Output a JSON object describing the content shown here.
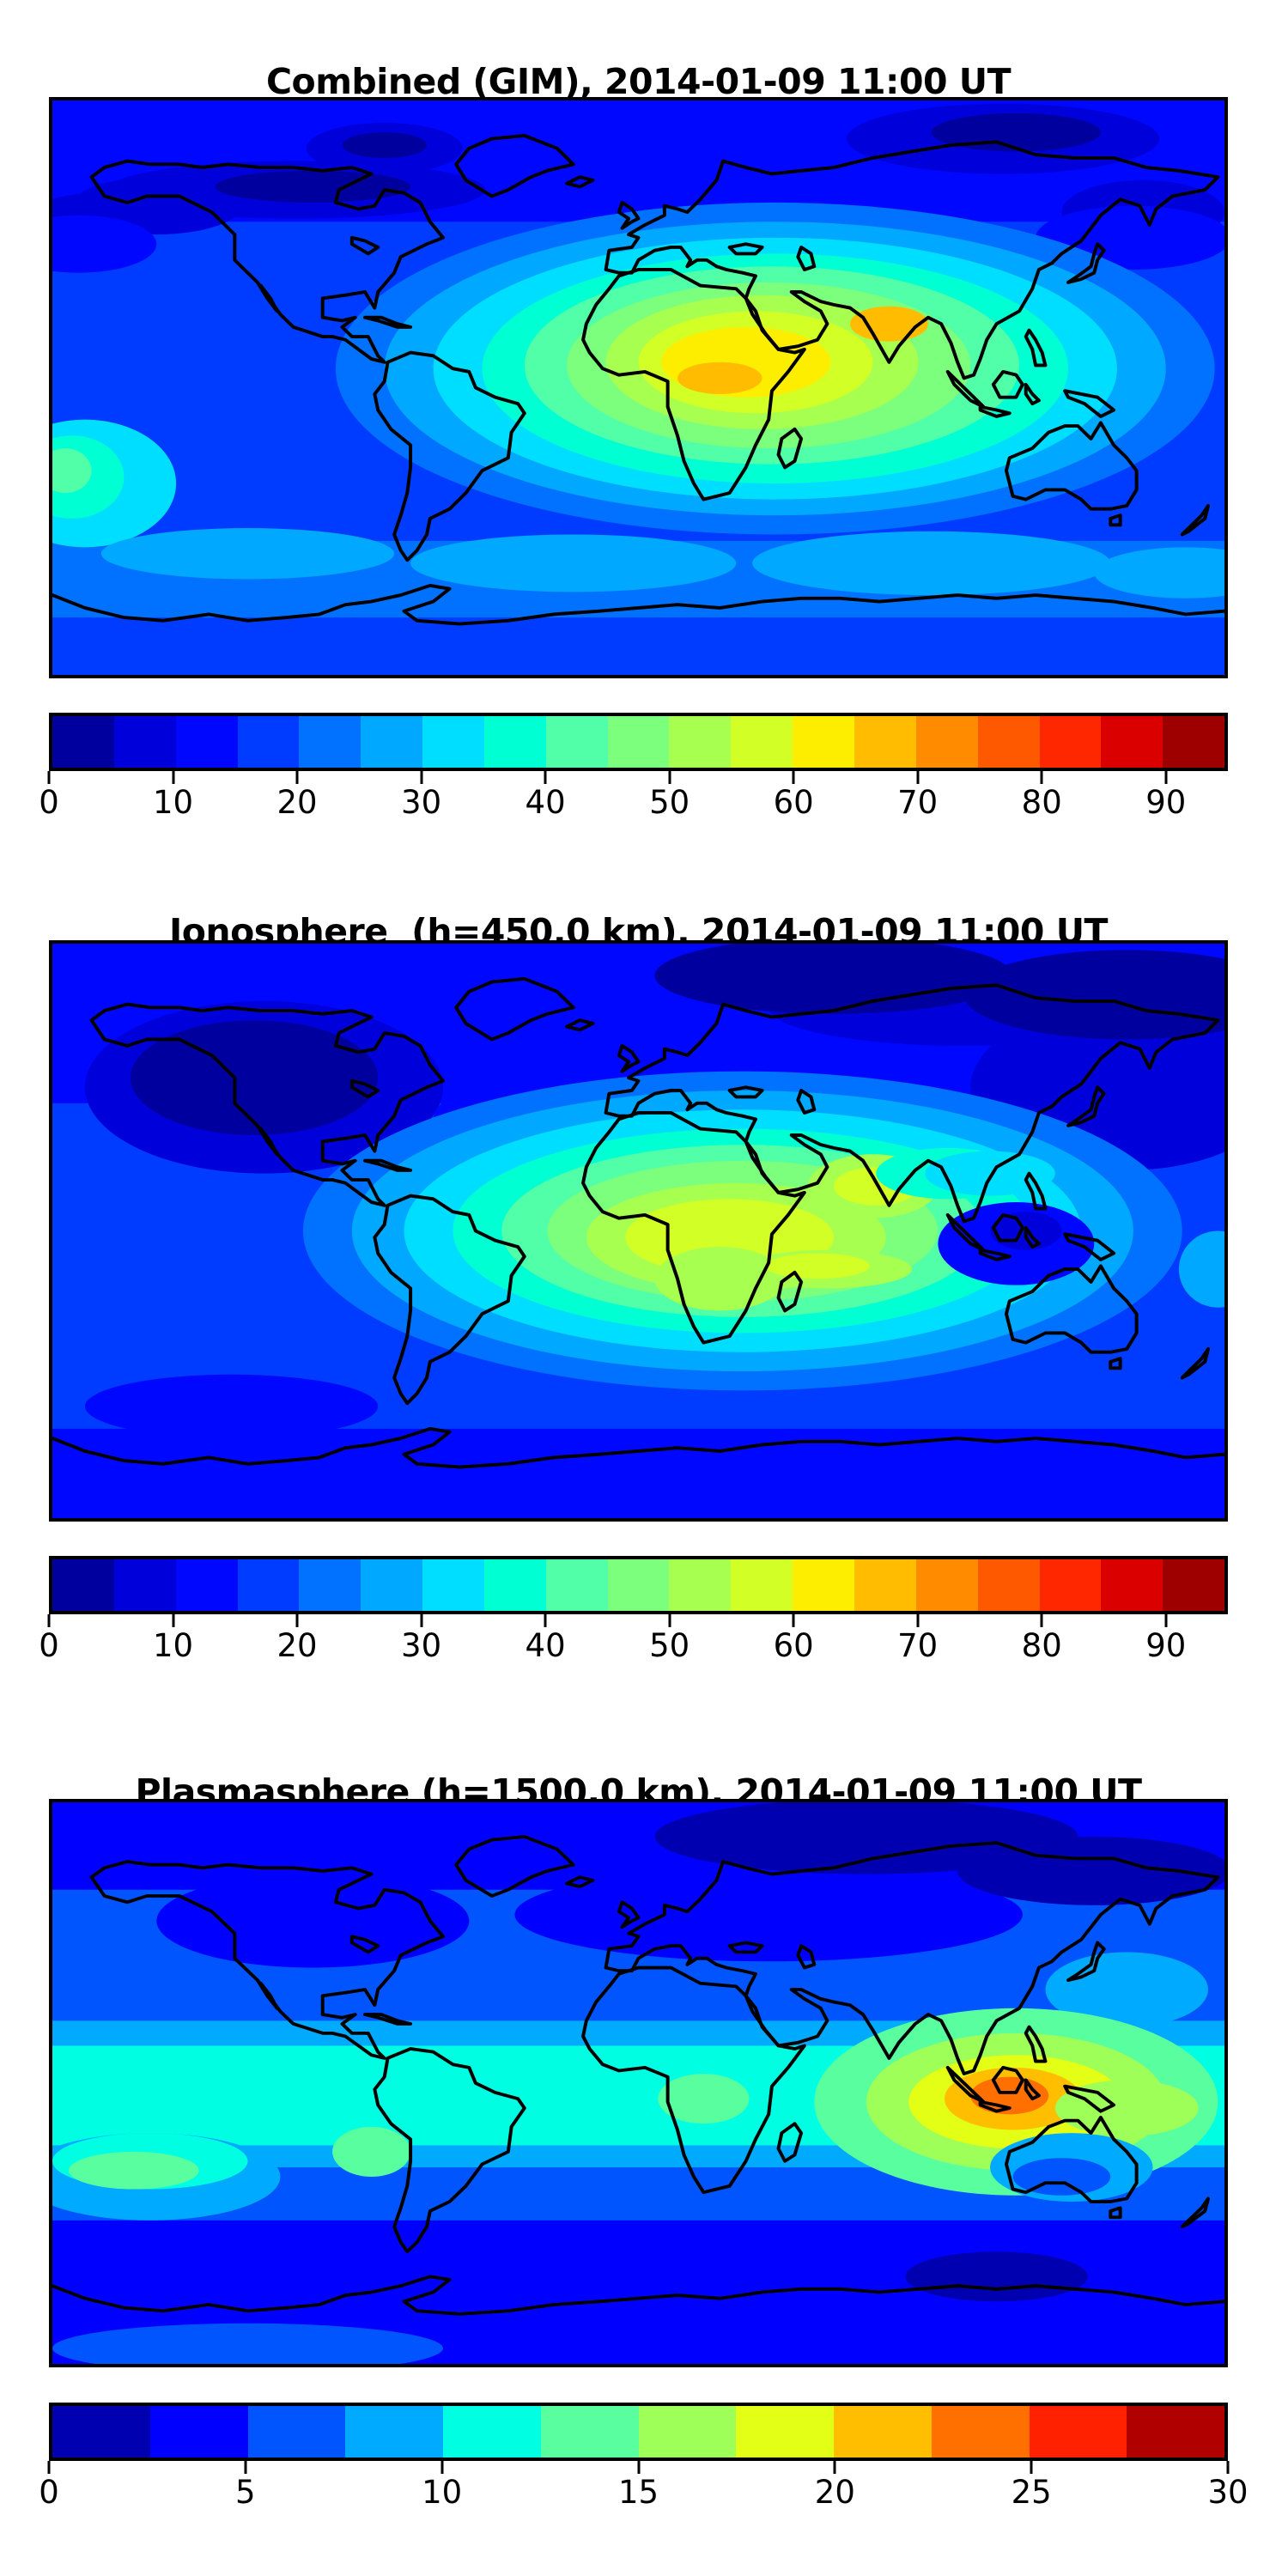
{
  "page_background": "#ffffff",
  "chart_data": [
    {
      "type": "heatmap",
      "subtype": "filled-contour-world-map",
      "title": "Combined (GIM), 2014-01-09 11:00 UT",
      "projection": "equirectangular",
      "lon_range": [
        -180,
        180
      ],
      "lat_range": [
        -90,
        90
      ],
      "grid": false,
      "colormap": "jet-discrete",
      "levels": {
        "min": 0,
        "max": 95,
        "step": 5
      },
      "colorbar_orientation": "horizontal",
      "colorbar_ticks": [
        0,
        10,
        20,
        30,
        40,
        50,
        60,
        70,
        80,
        90
      ],
      "colormap_colors": [
        "#00009E",
        "#0000DB",
        "#0007FF",
        "#003CFF",
        "#0072FF",
        "#00A8FF",
        "#00DEFF",
        "#00FFD2",
        "#50FFA7",
        "#7CFF7C",
        "#A7FF50",
        "#D2FF25",
        "#FDEE00",
        "#FFBC00",
        "#FF8B00",
        "#FF5900",
        "#FF2700",
        "#DB0000",
        "#9E0000"
      ],
      "features": [
        {
          "name": "global-maximum",
          "lon": 77,
          "lat": 20,
          "value": 70
        },
        {
          "name": "africa-secondary-maximum",
          "lon": 25,
          "lat": 3,
          "value": 68
        },
        {
          "name": "bright-band",
          "desc": "yellow ridge from central Africa to India",
          "value": 60
        },
        {
          "name": "north-canada-minimum",
          "lon": -100,
          "lat": 63,
          "value": 3
        },
        {
          "name": "siberia-minimum",
          "lon": 116,
          "lat": 80,
          "value": 3
        },
        {
          "name": "south-pacific-local-high",
          "lon": -174,
          "lat": -28,
          "value": 42
        }
      ],
      "field": {
        "base_value": 17,
        "bands": [
          {
            "lat_max": 90,
            "lat_min": 52,
            "v": 12
          },
          {
            "lat_max": -48,
            "lat_min": -72,
            "v": 22
          }
        ],
        "regions": [
          {
            "lon": -105,
            "lat": 62,
            "rx": 58,
            "ry": 9,
            "v": 7
          },
          {
            "lon": -148,
            "lat": 57,
            "rx": 26,
            "ry": 9,
            "v": 7
          },
          {
            "lon": -165,
            "lat": 54,
            "rx": 22,
            "ry": 7,
            "v": 7
          },
          {
            "lon": -100,
            "lat": 63,
            "rx": 30,
            "ry": 5,
            "v": 2
          },
          {
            "lon": -78,
            "lat": 75,
            "rx": 24,
            "ry": 8,
            "v": 7
          },
          {
            "lon": -78,
            "lat": 76,
            "rx": 13,
            "ry": 4,
            "v": 2
          },
          {
            "lon": 112,
            "lat": 78,
            "rx": 48,
            "ry": 11,
            "v": 7
          },
          {
            "lon": 116,
            "lat": 80,
            "rx": 26,
            "ry": 6,
            "v": 2
          },
          {
            "lon": 155,
            "lat": 55,
            "rx": 25,
            "ry": 10,
            "v": 7
          },
          {
            "lon": 152,
            "lat": 47,
            "rx": 30,
            "ry": 10,
            "v": 12
          },
          {
            "lon": -172,
            "lat": 45,
            "rx": 24,
            "ry": 9,
            "v": 12
          },
          {
            "lon": 42,
            "lat": 6,
            "rx": 135,
            "ry": 52,
            "v": 22
          },
          {
            "lon": 42,
            "lat": 6,
            "rx": 120,
            "ry": 46,
            "v": 27
          },
          {
            "lon": 42,
            "lat": 6,
            "rx": 105,
            "ry": 41,
            "v": 32
          },
          {
            "lon": 42,
            "lat": 6,
            "rx": 90,
            "ry": 36,
            "v": 37
          },
          {
            "lon": 41,
            "lat": 7,
            "rx": 76,
            "ry": 31,
            "v": 42
          },
          {
            "lon": 40,
            "lat": 7,
            "rx": 62,
            "ry": 26,
            "v": 47
          },
          {
            "lon": 38,
            "lat": 8,
            "rx": 48,
            "ry": 21,
            "v": 52
          },
          {
            "lon": 36,
            "lat": 8,
            "rx": 36,
            "ry": 16,
            "v": 57
          },
          {
            "lon": 33,
            "lat": 8,
            "rx": 26,
            "ry": 11,
            "v": 62
          },
          {
            "lon": 77,
            "lat": 20,
            "rx": 12,
            "ry": 5.5,
            "v": 67
          },
          {
            "lon": 25,
            "lat": 3,
            "rx": 13,
            "ry": 5,
            "v": 67
          },
          {
            "lon": -170,
            "lat": -30,
            "rx": 28,
            "ry": 20,
            "v": 32
          },
          {
            "lon": -174,
            "lat": -28,
            "rx": 16,
            "ry": 13,
            "v": 37
          },
          {
            "lon": -176,
            "lat": -26,
            "rx": 8,
            "ry": 7,
            "v": 42
          },
          {
            "lon": -120,
            "lat": -52,
            "rx": 45,
            "ry": 8,
            "v": 27
          },
          {
            "lon": -20,
            "lat": -55,
            "rx": 50,
            "ry": 9,
            "v": 27
          },
          {
            "lon": 90,
            "lat": -55,
            "rx": 55,
            "ry": 10,
            "v": 27
          },
          {
            "lon": 168,
            "lat": -58,
            "rx": 28,
            "ry": 8,
            "v": 27
          }
        ]
      }
    },
    {
      "type": "heatmap",
      "subtype": "filled-contour-world-map",
      "title": "Ionosphere  (h=450.0 km), 2014-01-09 11:00 UT",
      "projection": "equirectangular",
      "lon_range": [
        -180,
        180
      ],
      "lat_range": [
        -90,
        90
      ],
      "grid": false,
      "colormap": "jet-discrete",
      "levels": {
        "min": 0,
        "max": 95,
        "step": 5
      },
      "colorbar_orientation": "horizontal",
      "colorbar_ticks": [
        0,
        10,
        20,
        30,
        40,
        50,
        60,
        70,
        80,
        90
      ],
      "colormap_colors": [
        "#00009E",
        "#0000DB",
        "#0007FF",
        "#003CFF",
        "#0072FF",
        "#00A8FF",
        "#00DEFF",
        "#00FFD2",
        "#50FFA7",
        "#7CFF7C",
        "#A7FF50",
        "#D2FF25",
        "#FDEE00",
        "#FFBC00",
        "#FF8B00",
        "#FF5900",
        "#FF2700",
        "#DB0000",
        "#9E0000"
      ],
      "features": [
        {
          "name": "global-maximum",
          "lon": 30,
          "lat": 0,
          "value": 58
        },
        {
          "name": "india-local-maximum",
          "lon": 73,
          "lat": 14,
          "value": 57
        },
        {
          "name": "indian-ocean-tongue",
          "lon": 55,
          "lat": -11,
          "value": 56
        },
        {
          "name": "north-america-minimum",
          "lon": -118,
          "lat": 48,
          "value": 3
        },
        {
          "name": "arctic-minimum",
          "lon": 60,
          "lat": 80,
          "value": 3
        },
        {
          "name": "northwest-pacific-minimum",
          "lon": 150,
          "lat": 74,
          "value": 3
        },
        {
          "name": "indonesia-local-minimum",
          "lon": 119,
          "lat": 0,
          "value": 8
        }
      ],
      "field": {
        "base_value": 17,
        "bands": [
          {
            "lat_max": 90,
            "lat_min": 40,
            "v": 12
          },
          {
            "lat_max": -62,
            "lat_min": -90,
            "v": 12
          }
        ],
        "regions": [
          {
            "lon": -115,
            "lat": 45,
            "rx": 55,
            "ry": 27,
            "v": 7
          },
          {
            "lon": -118,
            "lat": 48,
            "rx": 38,
            "ry": 18,
            "v": 2
          },
          {
            "lon": 150,
            "lat": 45,
            "rx": 48,
            "ry": 26,
            "v": 7
          },
          {
            "lon": 100,
            "lat": 70,
            "rx": 60,
            "ry": 12,
            "v": 7
          },
          {
            "lon": 60,
            "lat": 80,
            "rx": 55,
            "ry": 12,
            "v": 2
          },
          {
            "lon": 150,
            "lat": 74,
            "rx": 50,
            "ry": 14,
            "v": 2
          },
          {
            "lon": -35,
            "lat": 35,
            "rx": 28,
            "ry": 12,
            "v": 12
          },
          {
            "lon": 32,
            "lat": 0,
            "rx": 135,
            "ry": 50,
            "v": 22
          },
          {
            "lon": 32,
            "lat": 0,
            "rx": 120,
            "ry": 44,
            "v": 27
          },
          {
            "lon": 32,
            "lat": 0,
            "rx": 104,
            "ry": 38,
            "v": 32
          },
          {
            "lon": 32,
            "lat": 0,
            "rx": 89,
            "ry": 32,
            "v": 37
          },
          {
            "lon": 32,
            "lat": 0,
            "rx": 74,
            "ry": 27,
            "v": 42
          },
          {
            "lon": 32,
            "lat": 0,
            "rx": 60,
            "ry": 22,
            "v": 47
          },
          {
            "lon": 30,
            "lat": -2,
            "rx": 46,
            "ry": 17,
            "v": 52
          },
          {
            "lon": 28,
            "lat": -2,
            "rx": 32,
            "ry": 12,
            "v": 57
          },
          {
            "lon": 72,
            "lat": 14,
            "rx": 20,
            "ry": 10,
            "v": 52
          },
          {
            "lon": 73,
            "lat": 14,
            "rx": 13,
            "ry": 6,
            "v": 57
          },
          {
            "lon": 25,
            "lat": -15,
            "rx": 20,
            "ry": 10,
            "v": 52
          },
          {
            "lon": 58,
            "lat": -12,
            "rx": 26,
            "ry": 6,
            "v": 52
          },
          {
            "lon": 55,
            "lat": -11,
            "rx": 16,
            "ry": 4,
            "v": 57
          },
          {
            "lon": 95,
            "lat": 18,
            "rx": 22,
            "ry": 8,
            "v": 37
          },
          {
            "lon": 108,
            "lat": 18,
            "rx": 20,
            "ry": 7,
            "v": 32
          },
          {
            "lon": 116,
            "lat": -4,
            "rx": 24,
            "ry": 13,
            "v": 12
          },
          {
            "lon": 119,
            "lat": 0,
            "rx": 11,
            "ry": 6,
            "v": 7
          },
          {
            "lon": -125,
            "lat": -55,
            "rx": 45,
            "ry": 10,
            "v": 12
          },
          {
            "lon": 178,
            "lat": -12,
            "rx": 12,
            "ry": 12,
            "v": 27
          }
        ]
      }
    },
    {
      "type": "heatmap",
      "subtype": "filled-contour-world-map",
      "title": "Plasmasphere (h=1500.0 km), 2014-01-09 11:00 UT",
      "projection": "equirectangular",
      "lon_range": [
        -180,
        180
      ],
      "lat_range": [
        -90,
        90
      ],
      "grid": false,
      "colormap": "jet-discrete",
      "levels": {
        "min": 0,
        "max": 30,
        "step": 2.5
      },
      "colorbar_orientation": "horizontal",
      "colorbar_ticks": [
        0,
        5,
        10,
        15,
        20,
        25,
        30
      ],
      "colormap_colors": [
        "#0000B0",
        "#0000FF",
        "#0055FF",
        "#00AAFF",
        "#00FFE2",
        "#59FF9E",
        "#9EFF59",
        "#E2FF15",
        "#FFBE00",
        "#FF7000",
        "#FF2100",
        "#B00000"
      ],
      "features": [
        {
          "name": "global-maximum",
          "lon": 114,
          "lat": -4,
          "value": 24
        },
        {
          "name": "equatorial-cyan-band",
          "lat": 0,
          "value": 12
        },
        {
          "name": "arctic-minimum",
          "lon": 70,
          "lat": 79,
          "value": 1
        },
        {
          "name": "antarctic-minimum",
          "lon": 110,
          "lat": -62,
          "value": 1
        },
        {
          "name": "south-pacific-local-high",
          "lon": -155,
          "lat": -28,
          "value": 14
        }
      ],
      "field": {
        "base_value": 6,
        "bands": [
          {
            "lat_max": 90,
            "lat_min": 62,
            "v": 3
          },
          {
            "lat_max": 20,
            "lat_min": 12,
            "v": 8
          },
          {
            "lat_max": 12,
            "lat_min": -20,
            "v": 11
          },
          {
            "lat_max": -20,
            "lat_min": -27,
            "v": 8
          },
          {
            "lat_max": -44,
            "lat_min": -90,
            "v": 3
          }
        ],
        "regions": [
          {
            "lon": -100,
            "lat": 52,
            "rx": 48,
            "ry": 15,
            "v": 3
          },
          {
            "lon": 40,
            "lat": 54,
            "rx": 78,
            "ry": 15,
            "v": 3
          },
          {
            "lon": 70,
            "lat": 79,
            "rx": 65,
            "ry": 12,
            "v": 1
          },
          {
            "lon": 140,
            "lat": 68,
            "rx": 42,
            "ry": 11,
            "v": 1
          },
          {
            "lon": 150,
            "lat": 30,
            "rx": 25,
            "ry": 12,
            "v": 8
          },
          {
            "lon": -150,
            "lat": -30,
            "rx": 40,
            "ry": 14,
            "v": 8
          },
          {
            "lon": -150,
            "lat": -25,
            "rx": 30,
            "ry": 9,
            "v": 11
          },
          {
            "lon": -155,
            "lat": -28,
            "rx": 20,
            "ry": 6,
            "v": 13
          },
          {
            "lon": -82,
            "lat": -22,
            "rx": 12,
            "ry": 8,
            "v": 13
          },
          {
            "lon": 20,
            "lat": -5,
            "rx": 14,
            "ry": 8,
            "v": 13
          },
          {
            "lon": 116,
            "lat": -6,
            "rx": 62,
            "ry": 30,
            "v": 13
          },
          {
            "lon": 116,
            "lat": -6,
            "rx": 46,
            "ry": 22,
            "v": 16
          },
          {
            "lon": 116,
            "lat": -6,
            "rx": 33,
            "ry": 15,
            "v": 19
          },
          {
            "lon": 115,
            "lat": -5,
            "rx": 21,
            "ry": 10,
            "v": 21
          },
          {
            "lon": 114,
            "lat": -4,
            "rx": 12,
            "ry": 6,
            "v": 24
          },
          {
            "lon": 150,
            "lat": -8,
            "rx": 22,
            "ry": 9,
            "v": 16
          },
          {
            "lon": 133,
            "lat": -27,
            "rx": 25,
            "ry": 11,
            "v": 8
          },
          {
            "lon": 130,
            "lat": -30,
            "rx": 15,
            "ry": 6,
            "v": 6
          },
          {
            "lon": 110,
            "lat": -62,
            "rx": 28,
            "ry": 8,
            "v": 1
          },
          {
            "lon": -120,
            "lat": -85,
            "rx": 60,
            "ry": 8,
            "v": 6
          }
        ]
      }
    }
  ]
}
